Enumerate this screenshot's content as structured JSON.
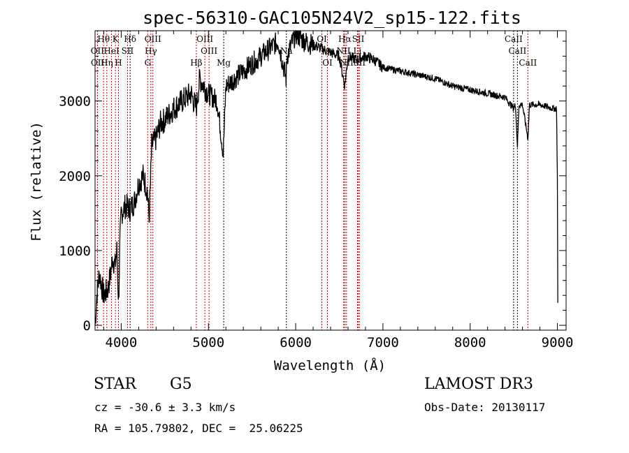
{
  "chart_data": {
    "type": "line",
    "title": "spec-56310-GAC105N24V2_sp15-122.fits",
    "xlabel": "Wavelength (Å)",
    "ylabel": "Flux (relative)",
    "xlim": [
      3700,
      9100
    ],
    "ylim": [
      -65,
      3940
    ],
    "xticks": [
      4000,
      5000,
      6000,
      7000,
      8000,
      9000
    ],
    "yticks": [
      0,
      1000,
      2000,
      3000
    ],
    "series": [
      {
        "name": "spectrum",
        "x": [
          3700,
          3720,
          3750,
          3780,
          3800,
          3830,
          3850,
          3880,
          3900,
          3930,
          3950,
          3970,
          3985,
          4000,
          4050,
          4100,
          4150,
          4200,
          4250,
          4300,
          4320,
          4350,
          4400,
          4450,
          4500,
          4600,
          4700,
          4800,
          4860,
          4900,
          5000,
          5100,
          5170,
          5200,
          5300,
          5400,
          5500,
          5600,
          5700,
          5800,
          5890,
          5900,
          6000,
          6100,
          6200,
          6300,
          6400,
          6500,
          6563,
          6600,
          6700,
          6800,
          6900,
          7000,
          7200,
          7400,
          7600,
          7800,
          8000,
          8200,
          8400,
          8498,
          8520,
          8542,
          8560,
          8600,
          8662,
          8680,
          8700,
          8800,
          8950,
          8990,
          9000,
          9005
        ],
        "y": [
          0,
          400,
          700,
          500,
          400,
          450,
          500,
          700,
          900,
          800,
          1000,
          300,
          1100,
          1500,
          1600,
          1550,
          1650,
          1900,
          2000,
          1800,
          1400,
          2400,
          2500,
          2700,
          2750,
          2900,
          3000,
          3100,
          2900,
          3300,
          3100,
          3000,
          2300,
          3200,
          3300,
          3400,
          3500,
          3600,
          3700,
          3800,
          3300,
          3600,
          3900,
          3800,
          3750,
          3700,
          3650,
          3600,
          3200,
          3600,
          3550,
          3600,
          3550,
          3450,
          3400,
          3350,
          3300,
          3200,
          3150,
          3100,
          3050,
          2900,
          2950,
          2400,
          2950,
          2950,
          2500,
          2950,
          2950,
          2950,
          2900,
          2900,
          2000,
          300
        ]
      }
    ],
    "lines": [
      {
        "label": "Hθ",
        "wl": 3798,
        "row": 0,
        "color": "#cc0000"
      },
      {
        "label": "K",
        "wl": 3934,
        "row": 0,
        "color": "#cc0000"
      },
      {
        "label": "Hδ",
        "wl": 4102,
        "row": 0,
        "color": "#000000"
      },
      {
        "label": "OIII",
        "wl": 4363,
        "row": 0,
        "color": "#cc0000"
      },
      {
        "label": "OIII",
        "wl": 4959,
        "row": 0,
        "color": "#cc0000"
      },
      {
        "label": "OI",
        "wl": 6300,
        "row": 0,
        "color": "#cc0000"
      },
      {
        "label": "Hα",
        "wl": 6563,
        "row": 0,
        "color": "#000000"
      },
      {
        "label": "SII",
        "wl": 6717,
        "row": 0,
        "color": "#cc0000"
      },
      {
        "label": "CaII",
        "wl": 8498,
        "row": 0,
        "color": "#000000"
      },
      {
        "label": "OII",
        "wl": 3727,
        "row": 1,
        "color": "#cc0000"
      },
      {
        "label": "HeI",
        "wl": 3889,
        "row": 1,
        "color": "#cc0000"
      },
      {
        "label": "SII",
        "wl": 4072,
        "row": 1,
        "color": "#cc0000"
      },
      {
        "label": "Hγ",
        "wl": 4340,
        "row": 1,
        "color": "#cc0000"
      },
      {
        "label": "OIII",
        "wl": 5007,
        "row": 1,
        "color": "#cc0000"
      },
      {
        "label": "Na",
        "wl": 5893,
        "row": 1,
        "color": "#000000"
      },
      {
        "label": "NII",
        "wl": 6548,
        "row": 1,
        "color": "#cc0000"
      },
      {
        "label": "Li",
        "wl": 6708,
        "row": 1,
        "color": "#cc0000"
      },
      {
        "label": "CaII",
        "wl": 8542,
        "row": 1,
        "color": "#000000"
      },
      {
        "label": "OII",
        "wl": 3729,
        "row": 2,
        "color": "#cc0000"
      },
      {
        "label": "Hη",
        "wl": 3835,
        "row": 2,
        "color": "#cc0000"
      },
      {
        "label": "H",
        "wl": 3968,
        "row": 2,
        "color": "#cc0000"
      },
      {
        "label": "G",
        "wl": 4304,
        "row": 2,
        "color": "#cc0000"
      },
      {
        "label": "Hβ",
        "wl": 4861,
        "row": 2,
        "color": "#cc0000"
      },
      {
        "label": "Mg",
        "wl": 5175,
        "row": 2,
        "color": "#000000"
      },
      {
        "label": "OI",
        "wl": 6364,
        "row": 2,
        "color": "#cc0000"
      },
      {
        "label": "NII",
        "wl": 6583,
        "row": 2,
        "color": "#cc0000"
      },
      {
        "label": "SII",
        "wl": 6731,
        "row": 2,
        "color": "#cc0000"
      },
      {
        "label": "CaII",
        "wl": 8662,
        "row": 2,
        "color": "#cc0000"
      }
    ]
  },
  "info": {
    "class": "STAR",
    "subclass": "G5",
    "survey": "LAMOST DR3",
    "cz": "cz = -30.6 ± 3.3 km/s",
    "obsdate": "Obs-Date: 20130117",
    "radec": "RA = 105.79802, DEC =  25.06225"
  }
}
